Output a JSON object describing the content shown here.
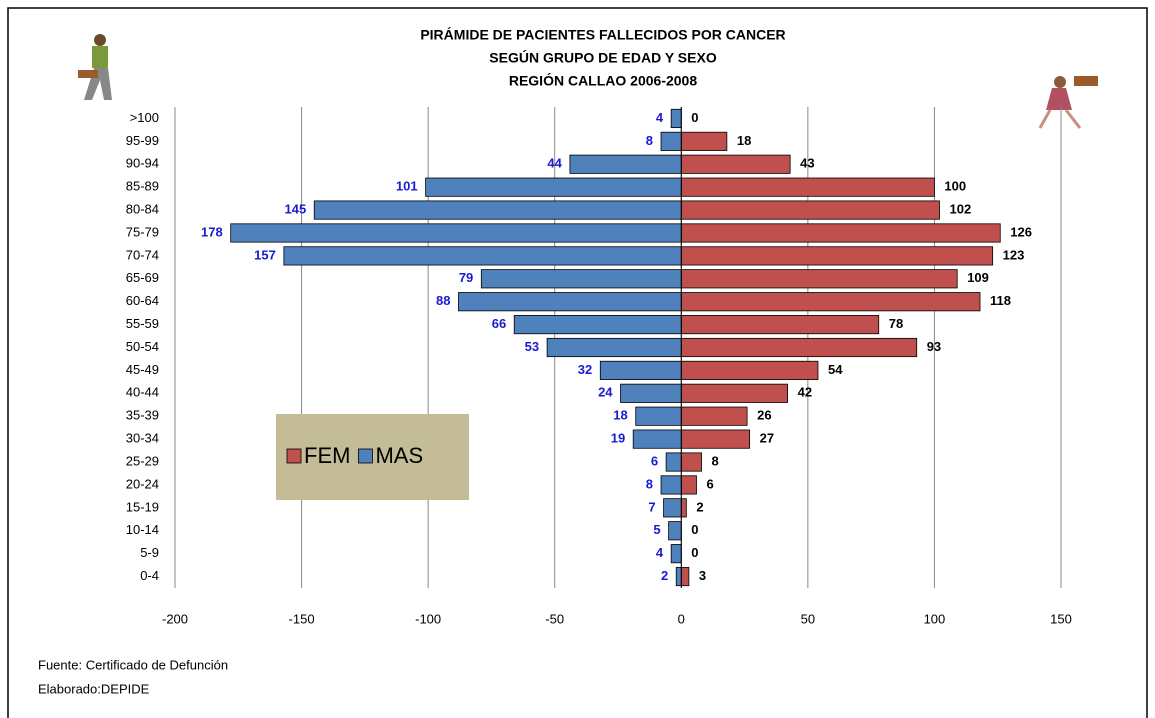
{
  "chart_data": {
    "type": "pyramid",
    "title": [
      "PIRÁMIDE DE PACIENTES FALLECIDOS POR CANCER",
      "SEGÚN  GRUPO DE EDAD Y SEXO",
      "REGIÓN CALLAO 2006-2008"
    ],
    "categories": [
      ">100",
      "95-99",
      "90-94",
      "85-89",
      "80-84",
      "75-79",
      "70-74",
      "65-69",
      "60-64",
      "55-59",
      "50-54",
      "45-49",
      "40-44",
      "35-39",
      "30-34",
      "25-29",
      "20-24",
      "15-19",
      "10-14",
      "5-9",
      "0-4"
    ],
    "series": [
      {
        "name": "FEM",
        "color": "#c0504d",
        "values": [
          0,
          18,
          43,
          100,
          102,
          126,
          123,
          109,
          118,
          78,
          93,
          54,
          42,
          26,
          27,
          8,
          6,
          2,
          0,
          0,
          3
        ]
      },
      {
        "name": "MAS",
        "color": "#4f81bd",
        "values": [
          -4,
          -8,
          -44,
          -101,
          -145,
          -178,
          -157,
          -79,
          -88,
          -66,
          -53,
          -32,
          -24,
          -18,
          -19,
          -6,
          -8,
          -7,
          -5,
          -4,
          -2
        ],
        "value_labels": [
          "4",
          "8",
          "44",
          "101",
          "145",
          "178",
          "157",
          "79",
          "88",
          "66",
          "53",
          "32",
          "24",
          "18",
          "19",
          "6",
          "8",
          "7",
          "5",
          "4",
          "2"
        ]
      }
    ],
    "xlim": [
      -200,
      150
    ],
    "xticks": [
      -200,
      -150,
      -100,
      -50,
      0,
      50,
      100,
      150
    ],
    "grid": true,
    "notes": [
      "Fuente: Certificado de Defunción",
      "Elaborado:DEPIDE"
    ]
  }
}
